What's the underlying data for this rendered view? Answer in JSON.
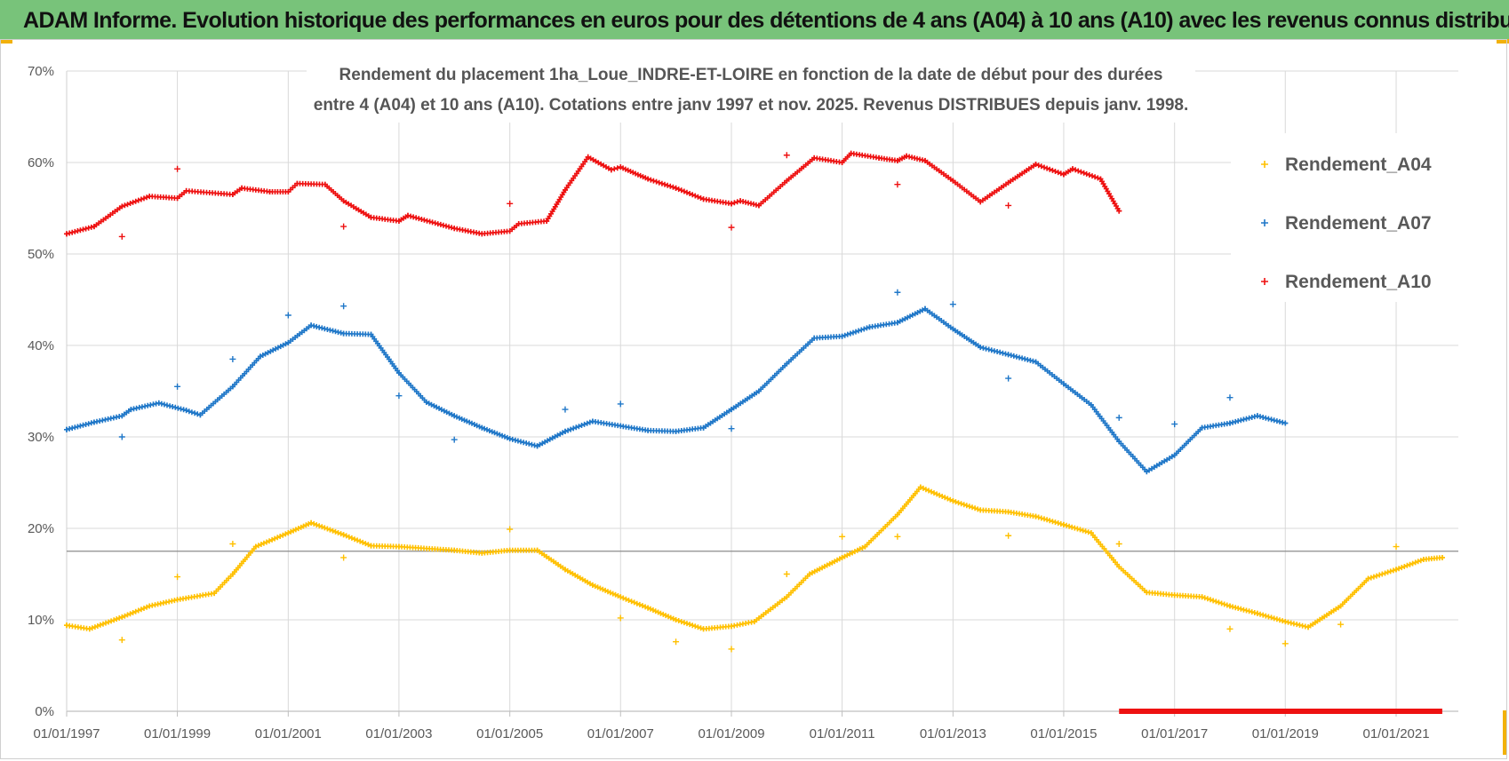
{
  "header": {
    "title": "ADAM Informe. Evolution historique des performances en euros pour des détentions de 4 ans (A04) à 10 ans (A10) avec les revenus connus distribués"
  },
  "colors": {
    "header_bg": "#78c37a",
    "accent": "#f2b10a",
    "A04": "#ffc000",
    "A07": "#1f77c8",
    "A10": "#ee1111"
  },
  "chart_data": {
    "type": "scatter",
    "title_lines": [
      "Rendement du placement 1ha_Loue_INDRE-ET-LOIRE en fonction de la date de début pour des durées",
      "entre 4 (A04) et 10 ans (A10). Cotations entre janv 1997 et nov. 2025. Revenus DISTRIBUES depuis janv. 1998."
    ],
    "x_ticks": [
      "01/01/1997",
      "01/01/1999",
      "01/01/2001",
      "01/01/2003",
      "01/01/2005",
      "01/01/2007",
      "01/01/2009",
      "01/01/2011",
      "01/01/2013",
      "01/01/2015",
      "01/01/2017",
      "01/01/2019",
      "01/01/2021"
    ],
    "y_ticks": [
      "0%",
      "10%",
      "20%",
      "30%",
      "40%",
      "50%",
      "60%",
      "70%"
    ],
    "xlim": [
      "1997-01-01",
      "2022-02-15"
    ],
    "ylim": [
      0,
      70
    ],
    "grid": true,
    "legend_position": "top-right",
    "reference_line_y": 17.5,
    "series": [
      {
        "name": "Rendement_A04",
        "color": "#ffc000",
        "points": [
          [
            "1997-01-01",
            9.4
          ],
          [
            "1997-06-01",
            9.0
          ],
          [
            "1998-01-01",
            10.3
          ],
          [
            "1998-07-01",
            11.5
          ],
          [
            "1999-01-01",
            12.2
          ],
          [
            "1999-09-01",
            12.9
          ],
          [
            "2000-01-01",
            15.0
          ],
          [
            "2000-06-01",
            18.0
          ],
          [
            "2001-01-01",
            19.5
          ],
          [
            "2001-06-01",
            20.6
          ],
          [
            "2002-01-01",
            19.3
          ],
          [
            "2002-07-01",
            18.1
          ],
          [
            "2003-01-01",
            18.0
          ],
          [
            "2004-01-01",
            17.6
          ],
          [
            "2004-07-01",
            17.3
          ],
          [
            "2005-01-01",
            17.6
          ],
          [
            "2005-07-01",
            17.6
          ],
          [
            "2006-01-01",
            15.5
          ],
          [
            "2006-07-01",
            13.8
          ],
          [
            "2007-01-01",
            12.5
          ],
          [
            "2007-07-01",
            11.3
          ],
          [
            "2008-01-01",
            10.0
          ],
          [
            "2008-07-01",
            9.0
          ],
          [
            "2009-01-01",
            9.3
          ],
          [
            "2009-06-01",
            9.8
          ],
          [
            "2010-01-01",
            12.5
          ],
          [
            "2010-06-01",
            15.0
          ],
          [
            "2011-01-01",
            16.8
          ],
          [
            "2011-06-01",
            18.0
          ],
          [
            "2012-01-01",
            21.5
          ],
          [
            "2012-06-01",
            24.5
          ],
          [
            "2013-01-01",
            23.0
          ],
          [
            "2013-07-01",
            22.0
          ],
          [
            "2014-01-01",
            21.8
          ],
          [
            "2014-07-01",
            21.3
          ],
          [
            "2015-01-01",
            20.4
          ],
          [
            "2015-07-01",
            19.5
          ],
          [
            "2016-01-01",
            15.8
          ],
          [
            "2016-07-01",
            13.0
          ],
          [
            "2017-01-01",
            12.7
          ],
          [
            "2017-07-01",
            12.5
          ],
          [
            "2018-01-01",
            11.5
          ],
          [
            "2018-07-01",
            10.7
          ],
          [
            "2019-01-01",
            9.8
          ],
          [
            "2019-06-01",
            9.2
          ],
          [
            "2020-01-01",
            11.5
          ],
          [
            "2020-07-01",
            14.5
          ],
          [
            "2021-01-01",
            15.5
          ],
          [
            "2021-07-01",
            16.6
          ],
          [
            "2021-11-01",
            16.8
          ]
        ],
        "outliers": [
          [
            "1998-01-01",
            7.8
          ],
          [
            "1999-01-01",
            14.7
          ],
          [
            "2000-01-01",
            18.3
          ],
          [
            "2002-01-01",
            16.8
          ],
          [
            "2005-01-01",
            19.9
          ],
          [
            "2007-01-01",
            10.2
          ],
          [
            "2008-01-01",
            7.6
          ],
          [
            "2009-01-01",
            6.8
          ],
          [
            "2010-01-01",
            15.0
          ],
          [
            "2011-01-01",
            19.1
          ],
          [
            "2012-01-01",
            19.1
          ],
          [
            "2014-01-01",
            19.2
          ],
          [
            "2016-01-01",
            18.3
          ],
          [
            "2018-01-01",
            9.0
          ],
          [
            "2019-01-01",
            7.4
          ],
          [
            "2020-01-01",
            9.5
          ],
          [
            "2021-01-01",
            18.0
          ]
        ]
      },
      {
        "name": "Rendement_A07",
        "color": "#1f77c8",
        "points": [
          [
            "1997-01-01",
            30.8
          ],
          [
            "1997-07-01",
            31.6
          ],
          [
            "1998-01-01",
            32.3
          ],
          [
            "1998-03-01",
            33.0
          ],
          [
            "1998-09-01",
            33.7
          ],
          [
            "1999-03-01",
            32.9
          ],
          [
            "1999-06-01",
            32.4
          ],
          [
            "2000-01-01",
            35.5
          ],
          [
            "2000-07-01",
            38.8
          ],
          [
            "2001-01-01",
            40.3
          ],
          [
            "2001-06-01",
            42.2
          ],
          [
            "2002-01-01",
            41.3
          ],
          [
            "2002-07-01",
            41.2
          ],
          [
            "2003-01-01",
            37.0
          ],
          [
            "2003-07-01",
            33.8
          ],
          [
            "2004-01-01",
            32.3
          ],
          [
            "2004-07-01",
            31.0
          ],
          [
            "2005-01-01",
            29.8
          ],
          [
            "2005-07-01",
            29.0
          ],
          [
            "2006-01-01",
            30.6
          ],
          [
            "2006-07-01",
            31.7
          ],
          [
            "2007-01-01",
            31.2
          ],
          [
            "2007-07-01",
            30.7
          ],
          [
            "2008-01-01",
            30.6
          ],
          [
            "2008-07-01",
            31.0
          ],
          [
            "2009-01-01",
            33.0
          ],
          [
            "2009-07-01",
            35.0
          ],
          [
            "2010-01-01",
            38.0
          ],
          [
            "2010-07-01",
            40.8
          ],
          [
            "2011-01-01",
            41.0
          ],
          [
            "2011-07-01",
            42.0
          ],
          [
            "2012-01-01",
            42.5
          ],
          [
            "2012-07-01",
            44.0
          ],
          [
            "2013-01-01",
            41.8
          ],
          [
            "2013-07-01",
            39.8
          ],
          [
            "2014-01-01",
            39.0
          ],
          [
            "2014-07-01",
            38.2
          ],
          [
            "2015-01-01",
            35.8
          ],
          [
            "2015-07-01",
            33.5
          ],
          [
            "2016-01-01",
            29.5
          ],
          [
            "2016-07-01",
            26.2
          ],
          [
            "2017-01-01",
            28.0
          ],
          [
            "2017-07-01",
            31.0
          ],
          [
            "2018-01-01",
            31.5
          ],
          [
            "2018-07-01",
            32.3
          ],
          [
            "2019-01-01",
            31.5
          ]
        ],
        "outliers": [
          [
            "1998-01-01",
            30.0
          ],
          [
            "1999-01-01",
            35.5
          ],
          [
            "2000-01-01",
            38.5
          ],
          [
            "2001-01-01",
            43.3
          ],
          [
            "2002-01-01",
            44.3
          ],
          [
            "2003-01-01",
            34.5
          ],
          [
            "2004-01-01",
            29.7
          ],
          [
            "2006-01-01",
            33.0
          ],
          [
            "2007-01-01",
            33.6
          ],
          [
            "2009-01-01",
            30.9
          ],
          [
            "2012-01-01",
            45.8
          ],
          [
            "2013-01-01",
            44.5
          ],
          [
            "2014-01-01",
            36.4
          ],
          [
            "2016-01-01",
            32.1
          ],
          [
            "2017-01-01",
            31.4
          ],
          [
            "2018-01-01",
            34.3
          ]
        ]
      },
      {
        "name": "Rendement_A10",
        "color": "#ee1111",
        "points": [
          [
            "1997-01-01",
            52.2
          ],
          [
            "1997-07-01",
            53.0
          ],
          [
            "1998-01-01",
            55.2
          ],
          [
            "1998-07-01",
            56.3
          ],
          [
            "1999-01-01",
            56.1
          ],
          [
            "1999-03-01",
            56.9
          ],
          [
            "2000-01-01",
            56.5
          ],
          [
            "2000-03-01",
            57.2
          ],
          [
            "2000-09-01",
            56.8
          ],
          [
            "2001-01-01",
            56.8
          ],
          [
            "2001-03-01",
            57.7
          ],
          [
            "2001-09-01",
            57.6
          ],
          [
            "2002-01-01",
            55.8
          ],
          [
            "2002-07-01",
            54.0
          ],
          [
            "2003-01-01",
            53.6
          ],
          [
            "2003-03-01",
            54.2
          ],
          [
            "2004-01-01",
            52.8
          ],
          [
            "2004-07-01",
            52.2
          ],
          [
            "2005-01-01",
            52.5
          ],
          [
            "2005-03-01",
            53.3
          ],
          [
            "2005-09-01",
            53.6
          ],
          [
            "2006-01-01",
            57.0
          ],
          [
            "2006-06-01",
            60.6
          ],
          [
            "2006-11-01",
            59.2
          ],
          [
            "2007-01-01",
            59.5
          ],
          [
            "2007-07-01",
            58.2
          ],
          [
            "2008-01-01",
            57.2
          ],
          [
            "2008-07-01",
            56.0
          ],
          [
            "2009-01-01",
            55.5
          ],
          [
            "2009-03-01",
            55.8
          ],
          [
            "2009-07-01",
            55.3
          ],
          [
            "2010-01-01",
            58.0
          ],
          [
            "2010-07-01",
            60.5
          ],
          [
            "2011-01-01",
            60.0
          ],
          [
            "2011-03-01",
            61.0
          ],
          [
            "2011-09-01",
            60.5
          ],
          [
            "2012-01-01",
            60.2
          ],
          [
            "2012-03-01",
            60.7
          ],
          [
            "2012-07-01",
            60.2
          ],
          [
            "2013-01-01",
            58.0
          ],
          [
            "2013-07-01",
            55.7
          ],
          [
            "2014-01-01",
            57.8
          ],
          [
            "2014-07-01",
            59.8
          ],
          [
            "2015-01-01",
            58.7
          ],
          [
            "2015-03-01",
            59.3
          ],
          [
            "2015-09-01",
            58.2
          ],
          [
            "2016-01-01",
            54.7
          ]
        ],
        "outliers": [
          [
            "1998-01-01",
            51.9
          ],
          [
            "1999-01-01",
            59.3
          ],
          [
            "2002-01-01",
            53.0
          ],
          [
            "2005-01-01",
            55.5
          ],
          [
            "2009-01-01",
            52.9
          ],
          [
            "2010-01-01",
            60.8
          ],
          [
            "2012-01-01",
            57.6
          ],
          [
            "2014-01-01",
            55.3
          ]
        ],
        "zero_range": [
          "2016-01-01",
          "2021-11-01"
        ]
      }
    ]
  }
}
